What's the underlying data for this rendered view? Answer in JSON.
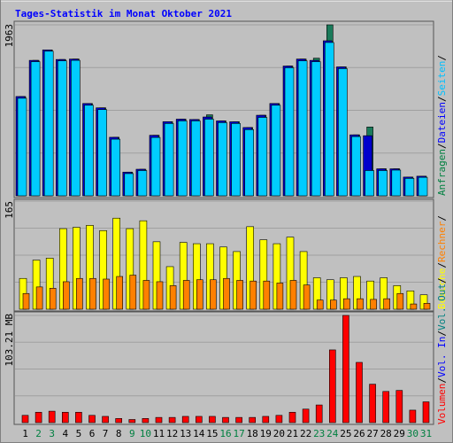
{
  "chart_data": {
    "type": "bar",
    "title": "Tages-Statistik im Monat Oktober 2021",
    "categories": [
      "1",
      "2",
      "3",
      "4",
      "5",
      "6",
      "7",
      "8",
      "9",
      "10",
      "11",
      "12",
      "13",
      "14",
      "15",
      "16",
      "17",
      "18",
      "19",
      "20",
      "21",
      "22",
      "23",
      "24",
      "25",
      "26",
      "27",
      "28",
      "29",
      "30",
      "31"
    ],
    "weekend_days": [
      "2",
      "3",
      "9",
      "10",
      "16",
      "17",
      "23",
      "24",
      "30",
      "31"
    ],
    "panels": [
      {
        "ylabel": "1963",
        "ymax": 1963,
        "series": [
          {
            "name": "Anfragen",
            "color": "#1a7a5a",
            "values": [
              1140,
              1555,
              1675,
              1565,
              1570,
              1060,
              1010,
              672,
              272,
              305,
              695,
              851,
              880,
              876,
              930,
              860,
              850,
              784,
              925,
              1060,
              1490,
              1570,
              1580,
              1963,
              1480,
              700,
              790,
              310,
              310,
              215,
              225
            ]
          },
          {
            "name": "Dateien",
            "color": "#0000cc",
            "values": [
              1140,
              1555,
              1675,
              1565,
              1570,
              1060,
              1010,
              672,
              272,
              305,
              695,
              851,
              880,
              876,
              905,
              860,
              850,
              784,
              925,
              1060,
              1490,
              1570,
              1555,
              1780,
              1480,
              700,
              690,
              310,
              310,
              215,
              225
            ]
          },
          {
            "name": "Seiten",
            "color": "#00ccff",
            "values": [
              1120,
              1540,
              1660,
              1550,
              1555,
              1040,
              990,
              650,
              255,
              290,
              670,
              830,
              860,
              860,
              880,
              840,
              830,
              760,
              900,
              1040,
              1470,
              1550,
              1540,
              1760,
              1460,
              680,
              290,
              290,
              295,
              200,
              212
            ]
          }
        ],
        "legend": [
          "Anfragen",
          "/",
          "Dateien",
          "/",
          "Seiten",
          "/"
        ]
      },
      {
        "ylabel": "165",
        "ymax": 165,
        "series": [
          {
            "name": "Besuche",
            "color": "#ffff00",
            "values": [
              47,
              75,
              78,
              123,
              125,
              128,
              120,
              139,
              123,
              135,
              103,
              65,
              102,
              100,
              100,
              95,
              88,
              126,
              106,
              100,
              110,
              88,
              48,
              45,
              48,
              50,
              43,
              48,
              36,
              28,
              22
            ]
          },
          {
            "name": "Rechner",
            "color": "#ff8000",
            "values": [
              24,
              34,
              32,
              42,
              47,
              47,
              46,
              50,
              52,
              44,
              42,
              36,
              44,
              45,
              45,
              47,
              44,
              43,
              43,
              40,
              44,
              37,
              14,
              14,
              16,
              16,
              15,
              16,
              24,
              8,
              9
            ]
          }
        ],
        "legend": [
          "Besuche",
          "/",
          "Rechner",
          "/"
        ]
      },
      {
        "ylabel": "103.21 MB",
        "ymax": 103.21,
        "series": [
          {
            "name": "Volumen",
            "color": "#ff0000",
            "values": [
              7,
              10,
              11,
              10,
              10,
              7,
              6,
              4,
              3,
              4,
              5,
              5,
              6,
              6,
              6,
              5,
              5,
              5,
              6,
              7,
              10,
              13,
              17,
              70,
              103.21,
              58,
              37,
              30,
              31,
              12,
              20
            ]
          }
        ],
        "legend": [
          "Volumen",
          "/",
          "Vol. In",
          "/",
          "Vol. Out",
          "/"
        ]
      }
    ],
    "legend_colors": {
      "Anfragen": "#008040",
      "Dateien": "#0000ff",
      "Seiten": "#00c0ff",
      "Besuche": "#ffff00",
      "Rechner": "#ff8000",
      "Volumen": "#ff0000",
      "Vol. In": "#0000ff",
      "Vol. Out": "#008080",
      "slash": "#000000"
    },
    "xtick_colors": {
      "weekday": "#000000",
      "weekend": "#008040"
    }
  }
}
